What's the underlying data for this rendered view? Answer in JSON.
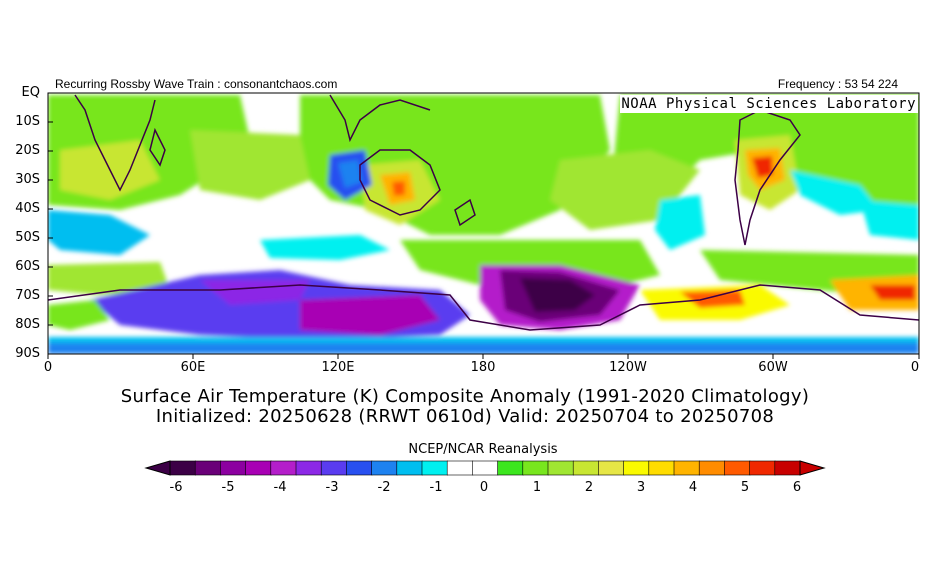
{
  "header": {
    "left": "Recurring Rossby Wave Train : consonantchaos.com",
    "right": "Frequency : 53 54 224"
  },
  "watermark": "NOAA Physical Sciences Laboratory",
  "title": {
    "line1": "Surface Air Temperature (K) Composite Anomaly (1991-2020 Climatology)",
    "line2": "Initialized: 20250628 (RRWT 0610d) Valid: 20250704 to 20250708"
  },
  "y_axis": {
    "ticks": [
      "EQ",
      "10S",
      "20S",
      "30S",
      "40S",
      "50S",
      "60S",
      "70S",
      "80S",
      "90S"
    ]
  },
  "x_axis": {
    "ticks": [
      "0",
      "60E",
      "120E",
      "180",
      "120W",
      "60W",
      "0"
    ]
  },
  "colorbar": {
    "title": "NCEP/NCAR Reanalysis",
    "ticks": [
      "-6",
      "-5",
      "-4",
      "-3",
      "-2",
      "-1",
      "0",
      "1",
      "2",
      "3",
      "4",
      "5",
      "6"
    ],
    "colors": [
      "#3c0046",
      "#6a0078",
      "#8c00a0",
      "#a800b4",
      "#b41eca",
      "#8c28e6",
      "#5a3cf0",
      "#2850f0",
      "#1e82f0",
      "#00bef0",
      "#00f0f0",
      "#ffffff",
      "#ffffff",
      "#3ce61e",
      "#78e61e",
      "#a0e632",
      "#c8e632",
      "#e6e646",
      "#fafa00",
      "#ffdc00",
      "#ffb400",
      "#ff8c00",
      "#ff5a00",
      "#f02800",
      "#c80000"
    ]
  }
}
